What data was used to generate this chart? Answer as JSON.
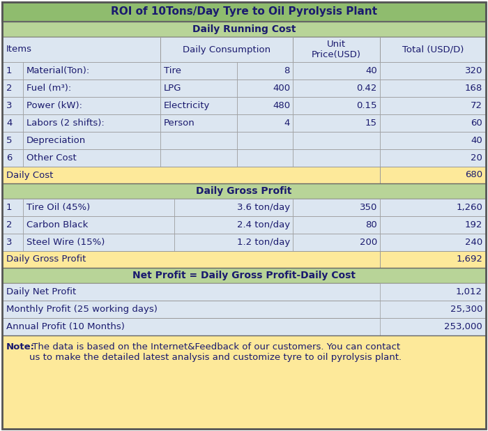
{
  "title": "ROI of 10Tons/Day Tyre to Oil Pyrolysis Plant",
  "title_bg": "#8fbc6e",
  "section_bg": "#b8d498",
  "header_bg": "#dce6f1",
  "row_bg": "#dce6f1",
  "summary_bg": "#fde99a",
  "note_bg": "#fde99a",
  "text_col": "#1a1a6e",
  "border_col": "#999999",
  "section1_title": "Daily Running Cost",
  "section1_rows": [
    [
      "1",
      "Material(Ton):",
      "Tire",
      "8",
      "40",
      "320"
    ],
    [
      "2",
      "Fuel (m³):",
      "LPG",
      "400",
      "0.42",
      "168"
    ],
    [
      "3",
      "Power (kW):",
      "Electricity",
      "480",
      "0.15",
      "72"
    ],
    [
      "4",
      "Labors (2 shifts):",
      "Person",
      "4",
      "15",
      "60"
    ],
    [
      "5",
      "Depreciation",
      "",
      "",
      "",
      "40"
    ],
    [
      "6",
      "Other Cost",
      "",
      "",
      "",
      "20"
    ]
  ],
  "section1_summary": [
    "Daily Cost",
    "680"
  ],
  "section2_title": "Daily Gross Profit",
  "section2_rows": [
    [
      "1",
      "Tire Oil (45%)",
      "3.6 ton/day",
      "350",
      "1,260"
    ],
    [
      "2",
      "Carbon Black",
      "2.4 ton/day",
      "80",
      "192"
    ],
    [
      "3",
      "Steel Wire (15%)",
      "1.2 ton/day",
      "200",
      "240"
    ]
  ],
  "section2_summary": [
    "Daily Gross Profit",
    "1,692"
  ],
  "section3_title": "Net Profit = Daily Gross Profit-Daily Cost",
  "section3_rows": [
    [
      "Daily Net Profit",
      "1,012"
    ],
    [
      "Monthly Profit (25 working days)",
      "25,300"
    ],
    [
      "Annual Profit (10 Months)",
      "253,000"
    ]
  ],
  "note_bold": "Note:",
  "note_rest": " The data is based on the Internet&Feedback of our customers. You can contact\nus to make the detailed latest analysis and customize tyre to oil pyrolysis plant."
}
